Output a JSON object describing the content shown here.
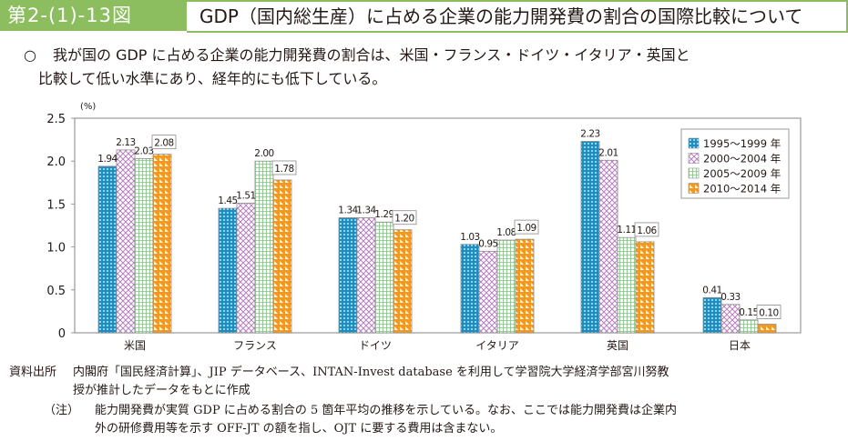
{
  "header": {
    "figure_label": "第2-(1)-13図",
    "title": "GDP（国内総生産）に占める企業の能力開発費の割合の国際比較について"
  },
  "summary": {
    "bullet": "○",
    "line1": "我が国の GDP に占める企業の能力開発費の割合は、米国・フランス・ドイツ・イタリア・英国と",
    "line2": "比較して低い水準にあり、経年的にも低下している。"
  },
  "chart_data": {
    "type": "bar",
    "title": "",
    "xlabel": "",
    "ylabel": "(%)",
    "ylim": [
      0,
      2.5
    ],
    "yticks": [
      0,
      0.5,
      1.0,
      1.5,
      2.0,
      2.5
    ],
    "ytick_labels": [
      "0",
      "0.5",
      "1.0",
      "1.5",
      "2.0",
      "2.5"
    ],
    "grid": false,
    "legend_position": "top-right",
    "categories": [
      "米国",
      "フランス",
      "ドイツ",
      "イタリア",
      "英国",
      "日本"
    ],
    "series": [
      {
        "name": "1995～1999 年",
        "color": "#1a8fc4",
        "pattern": "dots",
        "values": [
          1.94,
          1.45,
          1.34,
          1.03,
          2.23,
          0.41
        ],
        "labels": [
          "1.94",
          "1.45",
          "1.34",
          "1.03",
          "2.23",
          "0.41"
        ]
      },
      {
        "name": "2000～2004 年",
        "color": "#b77fc0",
        "pattern": "cross",
        "values": [
          2.13,
          1.51,
          1.34,
          0.95,
          2.01,
          0.33
        ],
        "labels": [
          "2.13",
          "1.51",
          "1.34",
          "0.95",
          "2.01",
          "0.33"
        ]
      },
      {
        "name": "2005～2009 年",
        "color": "#7fc07f",
        "pattern": "grid",
        "values": [
          2.03,
          2.0,
          1.29,
          1.08,
          1.11,
          0.15
        ],
        "labels": [
          "2.03",
          "2.00",
          "1.29",
          "1.08",
          "1.11",
          "0.15"
        ]
      },
      {
        "name": "2010～2014 年",
        "color": "#f7971d",
        "pattern": "triangles",
        "boxed_labels": true,
        "values": [
          2.08,
          1.78,
          1.2,
          1.09,
          1.06,
          0.1
        ],
        "labels": [
          "2.08",
          "1.78",
          "1.20",
          "1.09",
          "1.06",
          "0.10"
        ]
      }
    ]
  },
  "notes": {
    "source_label": "資料出所",
    "source_line1": "内閣府「国民経済計算」、JIP データベース、INTAN-Invest database を利用して学習院大学経済学部宮川努教",
    "source_line2": "授が推計したデータをもとに作成",
    "note_label": "（注）",
    "note_line1": "能力開発費が実質 GDP に占める割合の 5 箇年平均の推移を示している。なお、ここでは能力開発費は企業内",
    "note_line2": "外の研修費用等を示す OFF-JT の額を指し、OJT に要する費用は含まない。"
  }
}
